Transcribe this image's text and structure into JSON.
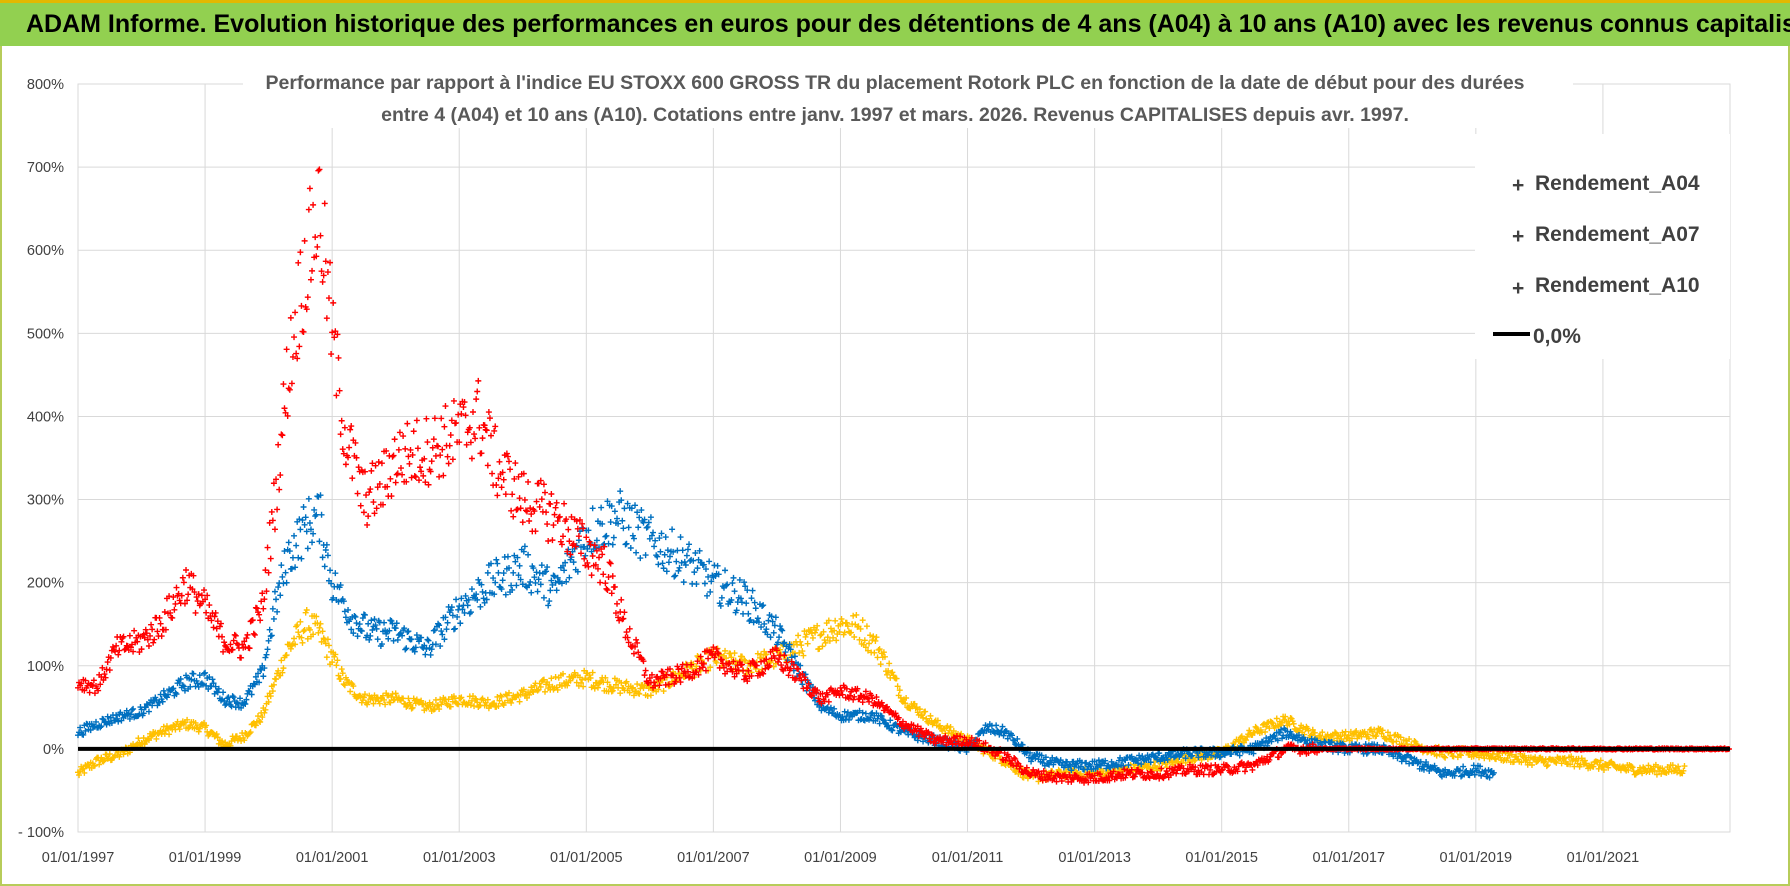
{
  "banner": {
    "title": "ADAM Informe. Evolution historique des performances en euros pour des détentions de 4 ans (A04) à 10 ans (A10) avec les revenus connus capitalisés"
  },
  "colors": {
    "banner_bg": "#92d050",
    "banner_accent": "#e3b800",
    "A04": "#ffc000",
    "A07": "#0070c0",
    "A10": "#ff0000",
    "zero_line": "#000000",
    "grid": "#d9d9d9"
  },
  "chart_data": {
    "type": "scatter",
    "title_line1": "Performance par rapport à l'indice EU STOXX 600 GROSS TR  du placement Rotork PLC en fonction de la date de début pour des durées",
    "title_line2": "entre 4 (A04) et 10 ans (A10).  Cotations entre janv. 1997 et mars. 2026. Revenus CAPITALISES depuis avr. 1997.",
    "x_tick_labels": [
      "01/01/1997",
      "01/01/1999",
      "01/01/2001",
      "01/01/2003",
      "01/01/2005",
      "01/01/2007",
      "01/01/2009",
      "01/01/2011",
      "01/01/2013",
      "01/01/2015",
      "01/01/2017",
      "01/01/2019",
      "01/01/2021"
    ],
    "y_tick_labels": [
      "800%",
      "700%",
      "600%",
      "500%",
      "400%",
      "300%",
      "200%",
      "100%",
      "0%",
      "- 100%"
    ],
    "xlim": [
      "01/01/1997",
      "01/01/2023"
    ],
    "ylim": [
      -100,
      800
    ],
    "y_unit": "%",
    "grid": true,
    "legend_position": "top-right",
    "legend": [
      "Rendement_A04",
      "Rendement_A07",
      "Rendement_A10",
      "0,0%"
    ],
    "series": [
      {
        "name": "Rendement_A04",
        "marker": "+",
        "points": [
          [
            1997.0,
            -30
          ],
          [
            1997.3,
            -15
          ],
          [
            1997.7,
            -5
          ],
          [
            1998.0,
            10
          ],
          [
            1998.3,
            20
          ],
          [
            1998.7,
            30
          ],
          [
            1999.0,
            25
          ],
          [
            1999.3,
            5
          ],
          [
            1999.6,
            15
          ],
          [
            1999.9,
            40
          ],
          [
            2000.1,
            80
          ],
          [
            2000.3,
            120
          ],
          [
            2000.6,
            150
          ],
          [
            2000.8,
            140
          ],
          [
            2001.0,
            110
          ],
          [
            2001.2,
            80
          ],
          [
            2001.5,
            60
          ],
          [
            2002.0,
            60
          ],
          [
            2002.5,
            50
          ],
          [
            2003.0,
            60
          ],
          [
            2003.5,
            55
          ],
          [
            2004.0,
            65
          ],
          [
            2004.5,
            80
          ],
          [
            2005.0,
            85
          ],
          [
            2005.5,
            75
          ],
          [
            2006.0,
            70
          ],
          [
            2006.5,
            90
          ],
          [
            2007.0,
            110
          ],
          [
            2007.5,
            100
          ],
          [
            2008.0,
            110
          ],
          [
            2008.5,
            130
          ],
          [
            2009.0,
            150
          ],
          [
            2009.3,
            145
          ],
          [
            2009.6,
            120
          ],
          [
            2010.0,
            60
          ],
          [
            2010.5,
            30
          ],
          [
            2011.0,
            10
          ],
          [
            2011.5,
            -10
          ],
          [
            2012.0,
            -35
          ],
          [
            2012.5,
            -30
          ],
          [
            2013.0,
            -30
          ],
          [
            2013.5,
            -25
          ],
          [
            2014.0,
            -20
          ],
          [
            2014.5,
            -10
          ],
          [
            2015.0,
            -5
          ],
          [
            2015.5,
            20
          ],
          [
            2016.0,
            35
          ],
          [
            2016.5,
            15
          ],
          [
            2017.0,
            15
          ],
          [
            2017.5,
            20
          ],
          [
            2018.0,
            5
          ],
          [
            2018.5,
            -5
          ],
          [
            2019.0,
            -5
          ],
          [
            2019.5,
            -10
          ],
          [
            2020.0,
            -15
          ],
          [
            2020.5,
            -15
          ],
          [
            2021.0,
            -20
          ],
          [
            2021.5,
            -25
          ],
          [
            2022.0,
            -25
          ],
          [
            2022.3,
            -25
          ]
        ]
      },
      {
        "name": "Rendement_A07",
        "marker": "+",
        "points": [
          [
            1997.0,
            20
          ],
          [
            1997.3,
            30
          ],
          [
            1997.7,
            40
          ],
          [
            1998.0,
            45
          ],
          [
            1998.3,
            60
          ],
          [
            1998.7,
            80
          ],
          [
            1999.0,
            85
          ],
          [
            1999.3,
            60
          ],
          [
            1999.6,
            55
          ],
          [
            1999.9,
            90
          ],
          [
            2000.1,
            170
          ],
          [
            2000.3,
            230
          ],
          [
            2000.6,
            270
          ],
          [
            2000.8,
            280
          ],
          [
            2001.0,
            200
          ],
          [
            2001.3,
            160
          ],
          [
            2001.6,
            140
          ],
          [
            2002.0,
            140
          ],
          [
            2002.5,
            120
          ],
          [
            2003.0,
            170
          ],
          [
            2003.5,
            200
          ],
          [
            2004.0,
            220
          ],
          [
            2004.5,
            190
          ],
          [
            2005.0,
            260
          ],
          [
            2005.5,
            280
          ],
          [
            2006.0,
            250
          ],
          [
            2006.5,
            230
          ],
          [
            2007.0,
            200
          ],
          [
            2007.5,
            180
          ],
          [
            2008.0,
            140
          ],
          [
            2008.3,
            100
          ],
          [
            2008.7,
            50
          ],
          [
            2009.0,
            40
          ],
          [
            2009.5,
            40
          ],
          [
            2010.0,
            20
          ],
          [
            2010.5,
            10
          ],
          [
            2011.0,
            0
          ],
          [
            2011.3,
            25
          ],
          [
            2011.6,
            20
          ],
          [
            2012.0,
            -10
          ],
          [
            2012.5,
            -20
          ],
          [
            2013.0,
            -20
          ],
          [
            2013.5,
            -15
          ],
          [
            2014.0,
            -10
          ],
          [
            2014.5,
            -5
          ],
          [
            2015.0,
            -5
          ],
          [
            2015.5,
            0
          ],
          [
            2016.0,
            20
          ],
          [
            2016.5,
            5
          ],
          [
            2017.0,
            0
          ],
          [
            2017.5,
            0
          ],
          [
            2018.0,
            -15
          ],
          [
            2018.5,
            -30
          ],
          [
            2019.0,
            -25
          ],
          [
            2019.3,
            -30
          ]
        ]
      },
      {
        "name": "Rendement_A10",
        "marker": "+",
        "points": [
          [
            1997.0,
            80
          ],
          [
            1997.3,
            75
          ],
          [
            1997.6,
            120
          ],
          [
            1998.0,
            130
          ],
          [
            1998.3,
            150
          ],
          [
            1998.7,
            200
          ],
          [
            1999.0,
            170
          ],
          [
            1999.3,
            130
          ],
          [
            1999.6,
            120
          ],
          [
            1999.9,
            170
          ],
          [
            2000.1,
            300
          ],
          [
            2000.3,
            450
          ],
          [
            2000.5,
            550
          ],
          [
            2000.7,
            620
          ],
          [
            2000.8,
            650
          ],
          [
            2001.0,
            500
          ],
          [
            2001.2,
            380
          ],
          [
            2001.5,
            300
          ],
          [
            2001.8,
            320
          ],
          [
            2002.0,
            350
          ],
          [
            2002.5,
            360
          ],
          [
            2003.0,
            380
          ],
          [
            2003.3,
            400
          ],
          [
            2003.6,
            340
          ],
          [
            2004.0,
            300
          ],
          [
            2004.5,
            280
          ],
          [
            2005.0,
            240
          ],
          [
            2005.3,
            220
          ],
          [
            2005.6,
            150
          ],
          [
            2006.0,
            80
          ],
          [
            2006.5,
            90
          ],
          [
            2007.0,
            110
          ],
          [
            2007.5,
            90
          ],
          [
            2008.0,
            110
          ],
          [
            2008.3,
            90
          ],
          [
            2008.7,
            60
          ],
          [
            2009.0,
            70
          ],
          [
            2009.5,
            60
          ],
          [
            2010.0,
            30
          ],
          [
            2010.5,
            10
          ],
          [
            2011.0,
            10
          ],
          [
            2011.5,
            -5
          ],
          [
            2012.0,
            -30
          ],
          [
            2012.5,
            -35
          ],
          [
            2013.0,
            -35
          ],
          [
            2013.5,
            -30
          ],
          [
            2014.0,
            -30
          ],
          [
            2014.5,
            -25
          ],
          [
            2015.0,
            -25
          ],
          [
            2015.5,
            -20
          ],
          [
            2016.0,
            0
          ],
          [
            2016.5,
            0
          ],
          [
            2017.0,
            0
          ],
          [
            2018.0,
            0
          ],
          [
            2019.0,
            0
          ],
          [
            2020.0,
            0
          ],
          [
            2021.0,
            0
          ],
          [
            2022.0,
            0
          ],
          [
            2023.0,
            0
          ]
        ]
      },
      {
        "name": "0,0%",
        "marker": "line",
        "points": [
          [
            1997.0,
            0
          ],
          [
            2023.0,
            0
          ]
        ]
      }
    ]
  }
}
